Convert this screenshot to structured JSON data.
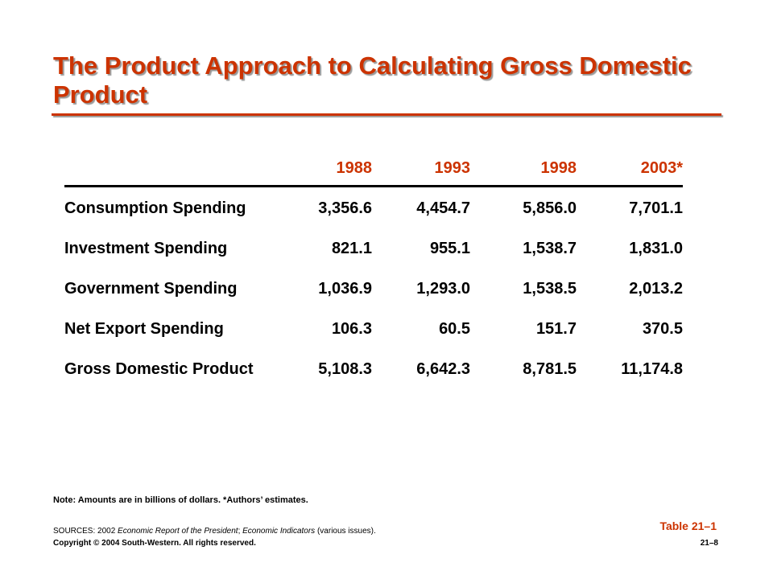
{
  "title": "The Product Approach to Calculating Gross Domestic Product",
  "table": {
    "columns": [
      "1988",
      "1993",
      "1998",
      "2003*"
    ],
    "rows": [
      {
        "label": "Consumption Spending",
        "values": [
          "3,356.6",
          "4,454.7",
          "5,856.0",
          "7,701.1"
        ]
      },
      {
        "label": "Investment Spending",
        "values": [
          "821.1",
          "955.1",
          "1,538.7",
          "1,831.0"
        ]
      },
      {
        "label": "Government Spending",
        "values": [
          "1,036.9",
          "1,293.0",
          "1,538.5",
          "2,013.2"
        ]
      },
      {
        "label": "Net Export Spending",
        "values": [
          "106.3",
          "60.5",
          "151.7",
          "370.5"
        ]
      },
      {
        "label": "Gross Domestic Product",
        "values": [
          "5,108.3",
          "6,642.3",
          "8,781.5",
          "11,174.8"
        ]
      }
    ]
  },
  "note": "Note:  Amounts are in billions of dollars.  *Authors’ estimates.",
  "sources": {
    "prefix": "SOURCES: 2002 ",
    "title1": "Economic Report of the President",
    "sep": "; ",
    "title2": "Economic Indicators",
    "suffix": " (various issues)."
  },
  "copyright": "Copyright © 2004 South-Western.  All rights reserved.",
  "table_id": "Table 21–1",
  "page_id": "21–8",
  "colors": {
    "accent": "#cc3300",
    "text": "#000000",
    "background": "#ffffff"
  }
}
